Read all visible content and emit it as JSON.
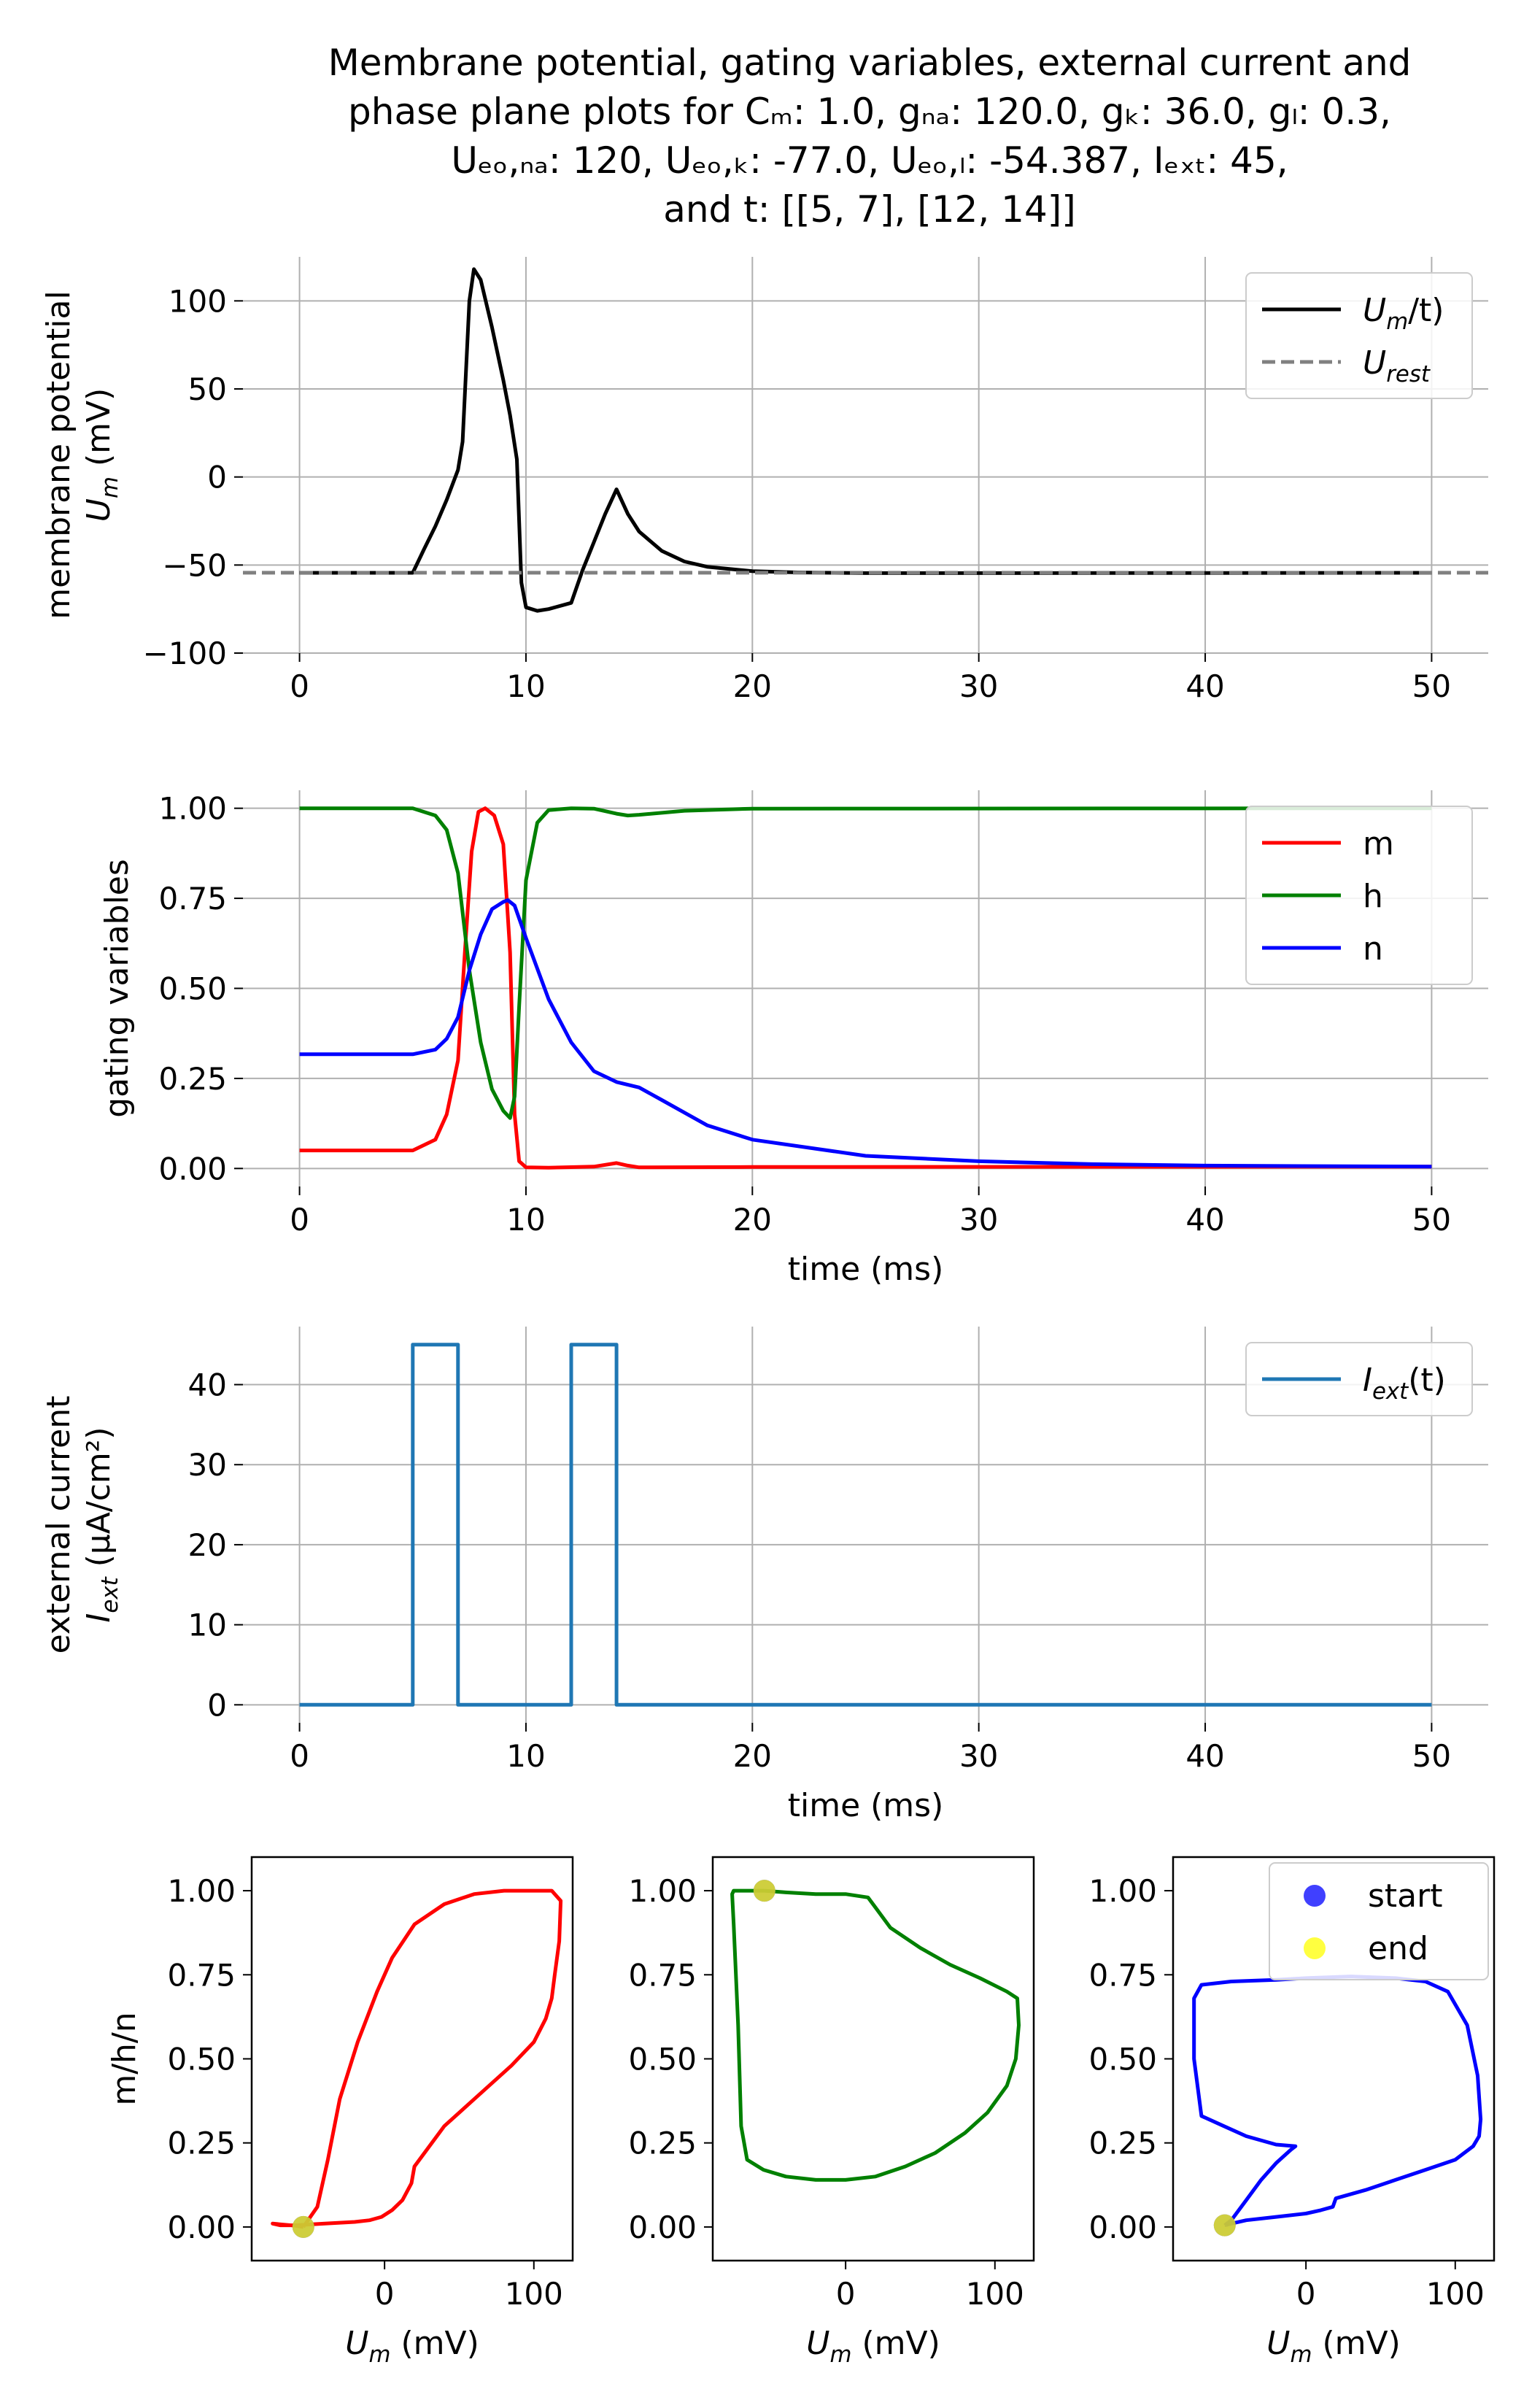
{
  "title_lines": [
    "Membrane potential, gating variables, external current and",
    "phase plane plots for Cₘ: 1.0, gₙₐ: 120.0, gₖ: 36.0, gₗ: 0.3,",
    "Uₑₒ,ₙₐ: 120, Uₑₒ,ₖ: -77.0, Uₑₒ,ₗ: -54.387, Iₑₓₜ: 45,",
    "and t: [[5, 7], [12, 14]]"
  ],
  "chart_data": [
    {
      "id": "membrane",
      "type": "line",
      "ylabel_lines": [
        "membrane potential",
        "U_m (mV)"
      ],
      "xlabel": "",
      "xlim": [
        -2.5,
        52.5
      ],
      "ylim": [
        -100,
        125
      ],
      "xticks": [
        0,
        10,
        20,
        30,
        40,
        50
      ],
      "yticks": [
        -100,
        -50,
        0,
        50,
        100
      ],
      "ytick_labels": [
        "−100",
        "−50",
        "0",
        "50",
        "100"
      ],
      "grid": true,
      "legend": "top-right",
      "series": [
        {
          "name": "U_m/t)",
          "color": "#000000",
          "style": "solid",
          "x": [
            0,
            5,
            5.5,
            6,
            6.5,
            7,
            7.2,
            7.5,
            7.7,
            8,
            8.5,
            9,
            9.3,
            9.6,
            9.8,
            10,
            10.5,
            11,
            12,
            12.5,
            13,
            13.5,
            14,
            14.5,
            15,
            16,
            17,
            18,
            20,
            22,
            25,
            30,
            40,
            50
          ],
          "y": [
            -54.4,
            -54.4,
            -41,
            -28,
            -13,
            4,
            20,
            100,
            118,
            112,
            85,
            55,
            35,
            10,
            -60,
            -74,
            -76,
            -75,
            -71.5,
            -53,
            -37,
            -21,
            -7,
            -21,
            -31,
            -42,
            -48,
            -51,
            -53.5,
            -54.2,
            -54.6,
            -54.6,
            -54.5,
            -54.4
          ]
        },
        {
          "name": "U_rest",
          "color": "#808080",
          "style": "dashed",
          "x": [
            -2.5,
            52.5
          ],
          "y": [
            -54.387,
            -54.387
          ]
        }
      ]
    },
    {
      "id": "gating",
      "type": "line",
      "ylabel_lines": [
        "gating variables"
      ],
      "xlabel": "time (ms)",
      "xlim": [
        -2.5,
        52.5
      ],
      "ylim": [
        -0.05,
        1.05
      ],
      "xticks": [
        0,
        10,
        20,
        30,
        40,
        50
      ],
      "yticks": [
        0.0,
        0.25,
        0.5,
        0.75,
        1.0
      ],
      "ytick_labels": [
        "0.00",
        "0.25",
        "0.50",
        "0.75",
        "1.00"
      ],
      "grid": true,
      "legend": "top-right",
      "series": [
        {
          "name": "m",
          "color": "#ff0000",
          "x": [
            0,
            5,
            6,
            6.5,
            7,
            7.3,
            7.6,
            7.9,
            8.2,
            8.6,
            9.0,
            9.3,
            9.5,
            9.7,
            10,
            11,
            13,
            14,
            14.5,
            15,
            20,
            50
          ],
          "y": [
            0.05,
            0.05,
            0.08,
            0.15,
            0.3,
            0.6,
            0.88,
            0.99,
            1.0,
            0.98,
            0.9,
            0.6,
            0.15,
            0.02,
            0.003,
            0.002,
            0.005,
            0.015,
            0.008,
            0.003,
            0.004,
            0.005
          ],
          "x_note": "",
          "y_note": ""
        },
        {
          "name": "h",
          "color": "#008000",
          "x": [
            0,
            5,
            6,
            6.5,
            7,
            7.5,
            8,
            8.5,
            9,
            9.3,
            9.5,
            9.7,
            10,
            10.5,
            11,
            12,
            13,
            14,
            14.5,
            15,
            17,
            20,
            50
          ],
          "y": [
            1.0,
            1.0,
            0.98,
            0.94,
            0.82,
            0.55,
            0.35,
            0.22,
            0.16,
            0.14,
            0.2,
            0.45,
            0.8,
            0.96,
            0.995,
            1.0,
            0.999,
            0.985,
            0.98,
            0.982,
            0.993,
            0.999,
            1.0
          ]
        },
        {
          "name": "n",
          "color": "#0000ff",
          "x": [
            0,
            5,
            6,
            6.5,
            7,
            7.5,
            8,
            8.5,
            9,
            9.2,
            9.5,
            10,
            11,
            12,
            13,
            14,
            15,
            16,
            18,
            20,
            25,
            30,
            35,
            40,
            50
          ],
          "y": [
            0.317,
            0.317,
            0.33,
            0.36,
            0.42,
            0.55,
            0.65,
            0.72,
            0.74,
            0.745,
            0.73,
            0.64,
            0.47,
            0.35,
            0.27,
            0.24,
            0.225,
            0.19,
            0.12,
            0.08,
            0.035,
            0.02,
            0.012,
            0.008,
            0.005
          ]
        }
      ]
    },
    {
      "id": "current",
      "type": "line",
      "ylabel_lines": [
        "external current",
        "I_ext (μA/cm²)"
      ],
      "xlabel": "time (ms)",
      "xlim": [
        -2.5,
        52.5
      ],
      "ylim": [
        -2.25,
        47.25
      ],
      "xticks": [
        0,
        10,
        20,
        30,
        40,
        50
      ],
      "yticks": [
        0,
        10,
        20,
        30,
        40
      ],
      "ytick_labels": [
        "0",
        "10",
        "20",
        "30",
        "40"
      ],
      "grid": true,
      "legend": "top-right",
      "series": [
        {
          "name": "I_ext(t)",
          "color": "#1f77b4",
          "x": [
            0,
            5,
            5,
            7,
            7,
            12,
            12,
            14,
            14,
            50
          ],
          "y": [
            0,
            0,
            45,
            45,
            0,
            0,
            45,
            45,
            0,
            0
          ]
        }
      ]
    },
    {
      "id": "phase_m",
      "type": "line",
      "ylabel_lines": [
        "m/h/n"
      ],
      "xlabel": "U_m (mV)",
      "xlim": [
        -89,
        126
      ],
      "ylim": [
        -0.1,
        1.1
      ],
      "xticks": [
        0,
        100
      ],
      "yticks": [
        0.0,
        0.25,
        0.5,
        0.75,
        1.0
      ],
      "ytick_labels": [
        "0.00",
        "0.25",
        "0.50",
        "0.75",
        "1.00"
      ],
      "grid": false,
      "legend": "none",
      "series": [
        {
          "name": "",
          "color": "#ff0000",
          "x": [
            -54.4,
            -45,
            -38,
            -30,
            -18,
            -5,
            5,
            20,
            40,
            60,
            80,
            95,
            112,
            118,
            117,
            114,
            112,
            108,
            100,
            85,
            60,
            40,
            20,
            18,
            12,
            5,
            -2,
            -10,
            -20,
            -40,
            -60,
            -70,
            -75,
            -60,
            -54.4
          ],
          "y": [
            0.0,
            0.06,
            0.2,
            0.38,
            0.55,
            0.7,
            0.8,
            0.9,
            0.96,
            0.99,
            1.0,
            1.0,
            1.0,
            0.97,
            0.85,
            0.75,
            0.68,
            0.62,
            0.55,
            0.48,
            0.38,
            0.3,
            0.18,
            0.13,
            0.08,
            0.05,
            0.03,
            0.02,
            0.015,
            0.01,
            0.005,
            0.005,
            0.01,
            0.004,
            0.0
          ]
        },
        {
          "name": "start",
          "marker": "start",
          "color": "#0000ff",
          "x": [
            -54.4
          ],
          "y": [
            0.0
          ]
        },
        {
          "name": "end",
          "marker": "end",
          "color": "#ffff00",
          "x": [
            -54.4
          ],
          "y": [
            0.0
          ]
        }
      ]
    },
    {
      "id": "phase_h",
      "type": "line",
      "ylabel_lines": [],
      "xlabel": "U_m (mV)",
      "xlim": [
        -89,
        126
      ],
      "ylim": [
        -0.1,
        1.1
      ],
      "xticks": [
        0,
        100
      ],
      "yticks": [
        0.0,
        0.25,
        0.5,
        0.75,
        1.0
      ],
      "ytick_labels": [
        "0.00",
        "0.25",
        "0.50",
        "0.75",
        "1.00"
      ],
      "grid": false,
      "legend": "none",
      "series": [
        {
          "name": "",
          "color": "#008000",
          "x": [
            -54.4,
            -40,
            -20,
            0,
            15,
            20,
            30,
            50,
            70,
            90,
            108,
            115,
            116,
            114,
            108,
            95,
            80,
            60,
            40,
            20,
            0,
            -20,
            -40,
            -55,
            -66,
            -70,
            -72,
            -75,
            -76,
            -75,
            -72,
            -60,
            -54.4
          ],
          "y": [
            1.0,
            0.995,
            0.99,
            0.99,
            0.98,
            0.95,
            0.89,
            0.83,
            0.78,
            0.74,
            0.7,
            0.68,
            0.6,
            0.5,
            0.42,
            0.34,
            0.28,
            0.22,
            0.18,
            0.15,
            0.14,
            0.14,
            0.15,
            0.17,
            0.2,
            0.3,
            0.6,
            0.9,
            0.99,
            1.0,
            1.0,
            1.0,
            1.0
          ]
        },
        {
          "name": "start",
          "marker": "start",
          "color": "#0000ff",
          "x": [
            -54.4
          ],
          "y": [
            1.0
          ]
        },
        {
          "name": "end",
          "marker": "end",
          "color": "#ffff00",
          "x": [
            -54.4
          ],
          "y": [
            1.0
          ]
        }
      ]
    },
    {
      "id": "phase_n",
      "type": "line",
      "ylabel_lines": [],
      "xlabel": "U_m (mV)",
      "xlim": [
        -89,
        126
      ],
      "ylim": [
        -0.1,
        1.1
      ],
      "xticks": [
        0,
        100
      ],
      "yticks": [
        0.0,
        0.25,
        0.5,
        0.75,
        1.0
      ],
      "ytick_labels": [
        "0.00",
        "0.25",
        "0.50",
        "0.75",
        "1.00"
      ],
      "grid": false,
      "legend": "top-right",
      "series": [
        {
          "name": "",
          "color": "#0000ff",
          "x": [
            -54.4,
            -50,
            -40,
            -30,
            -20,
            -10,
            -7,
            -20,
            -40,
            -55,
            -70,
            -75,
            -75,
            -70,
            -50,
            -20,
            0,
            30,
            60,
            80,
            95,
            108,
            115,
            117,
            116,
            112,
            100,
            80,
            60,
            40,
            20,
            18,
            10,
            0,
            -20,
            -40,
            -50,
            -54.4
          ],
          "y": [
            0.005,
            0.02,
            0.08,
            0.14,
            0.19,
            0.23,
            0.24,
            0.245,
            0.27,
            0.3,
            0.33,
            0.5,
            0.68,
            0.72,
            0.73,
            0.735,
            0.74,
            0.745,
            0.74,
            0.73,
            0.7,
            0.6,
            0.45,
            0.32,
            0.27,
            0.24,
            0.2,
            0.17,
            0.14,
            0.11,
            0.085,
            0.06,
            0.05,
            0.04,
            0.03,
            0.02,
            0.01,
            0.005
          ]
        },
        {
          "name": "start",
          "marker": "start",
          "color": "#0000ff",
          "x": [
            -54.4
          ],
          "y": [
            0.005
          ]
        },
        {
          "name": "end",
          "marker": "end",
          "color": "#ffff00",
          "x": [
            -54.4
          ],
          "y": [
            0.005
          ]
        }
      ]
    }
  ]
}
